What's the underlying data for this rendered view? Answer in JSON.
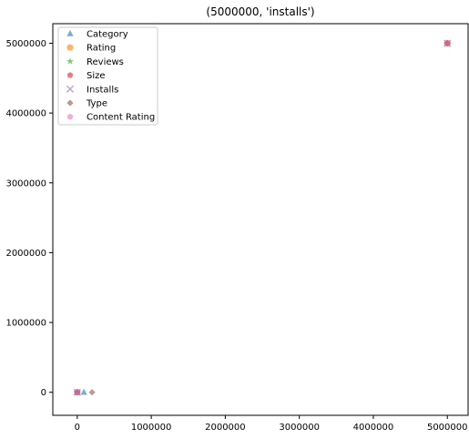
{
  "chart_data": {
    "type": "scatter",
    "title": "(5000000, 'installs')",
    "xlabel": "",
    "ylabel": "",
    "xlim": [
      -330000,
      5280000
    ],
    "ylim": [
      -330000,
      5280000
    ],
    "x_ticks": [
      0,
      1000000,
      2000000,
      3000000,
      4000000,
      5000000
    ],
    "x_tick_labels": [
      "0",
      "1000000",
      "2000000",
      "3000000",
      "4000000",
      "5000000"
    ],
    "y_ticks": [
      0,
      1000000,
      2000000,
      3000000,
      4000000,
      5000000
    ],
    "y_tick_labels": [
      "0",
      "1000000",
      "2000000",
      "3000000",
      "4000000",
      "5000000"
    ],
    "grid": false,
    "legend_position": "top-left",
    "series": [
      {
        "name": "Category",
        "marker": "triangle-icon",
        "color": "#1f77b4",
        "points": [
          [
            0,
            0
          ],
          [
            90000,
            0
          ],
          [
            5000000,
            5000000
          ]
        ]
      },
      {
        "name": "Rating",
        "marker": "circle-icon",
        "color": "#ff7f0e",
        "points": [
          [
            0,
            0
          ],
          [
            5000000,
            5000000
          ]
        ]
      },
      {
        "name": "Reviews",
        "marker": "star-icon",
        "color": "#2ca02c",
        "points": [
          [
            0,
            0
          ],
          [
            5000000,
            5000000
          ]
        ]
      },
      {
        "name": "Size",
        "marker": "pentagon-icon",
        "color": "#d62728",
        "points": [
          [
            0,
            0
          ],
          [
            5000000,
            5000000
          ]
        ]
      },
      {
        "name": "Installs",
        "marker": "x-icon",
        "color": "#9467bd",
        "points": [
          [
            0,
            0
          ],
          [
            5000000,
            5000000
          ]
        ]
      },
      {
        "name": "Type",
        "marker": "diamond-icon",
        "color": "#8c564b",
        "points": [
          [
            0,
            0
          ],
          [
            200000,
            0
          ],
          [
            5000000,
            5000000
          ]
        ]
      },
      {
        "name": "Content Rating",
        "marker": "pentagon-icon",
        "color": "#e377c2",
        "points": [
          [
            0,
            0
          ],
          [
            5000000,
            5000000
          ]
        ]
      }
    ]
  }
}
